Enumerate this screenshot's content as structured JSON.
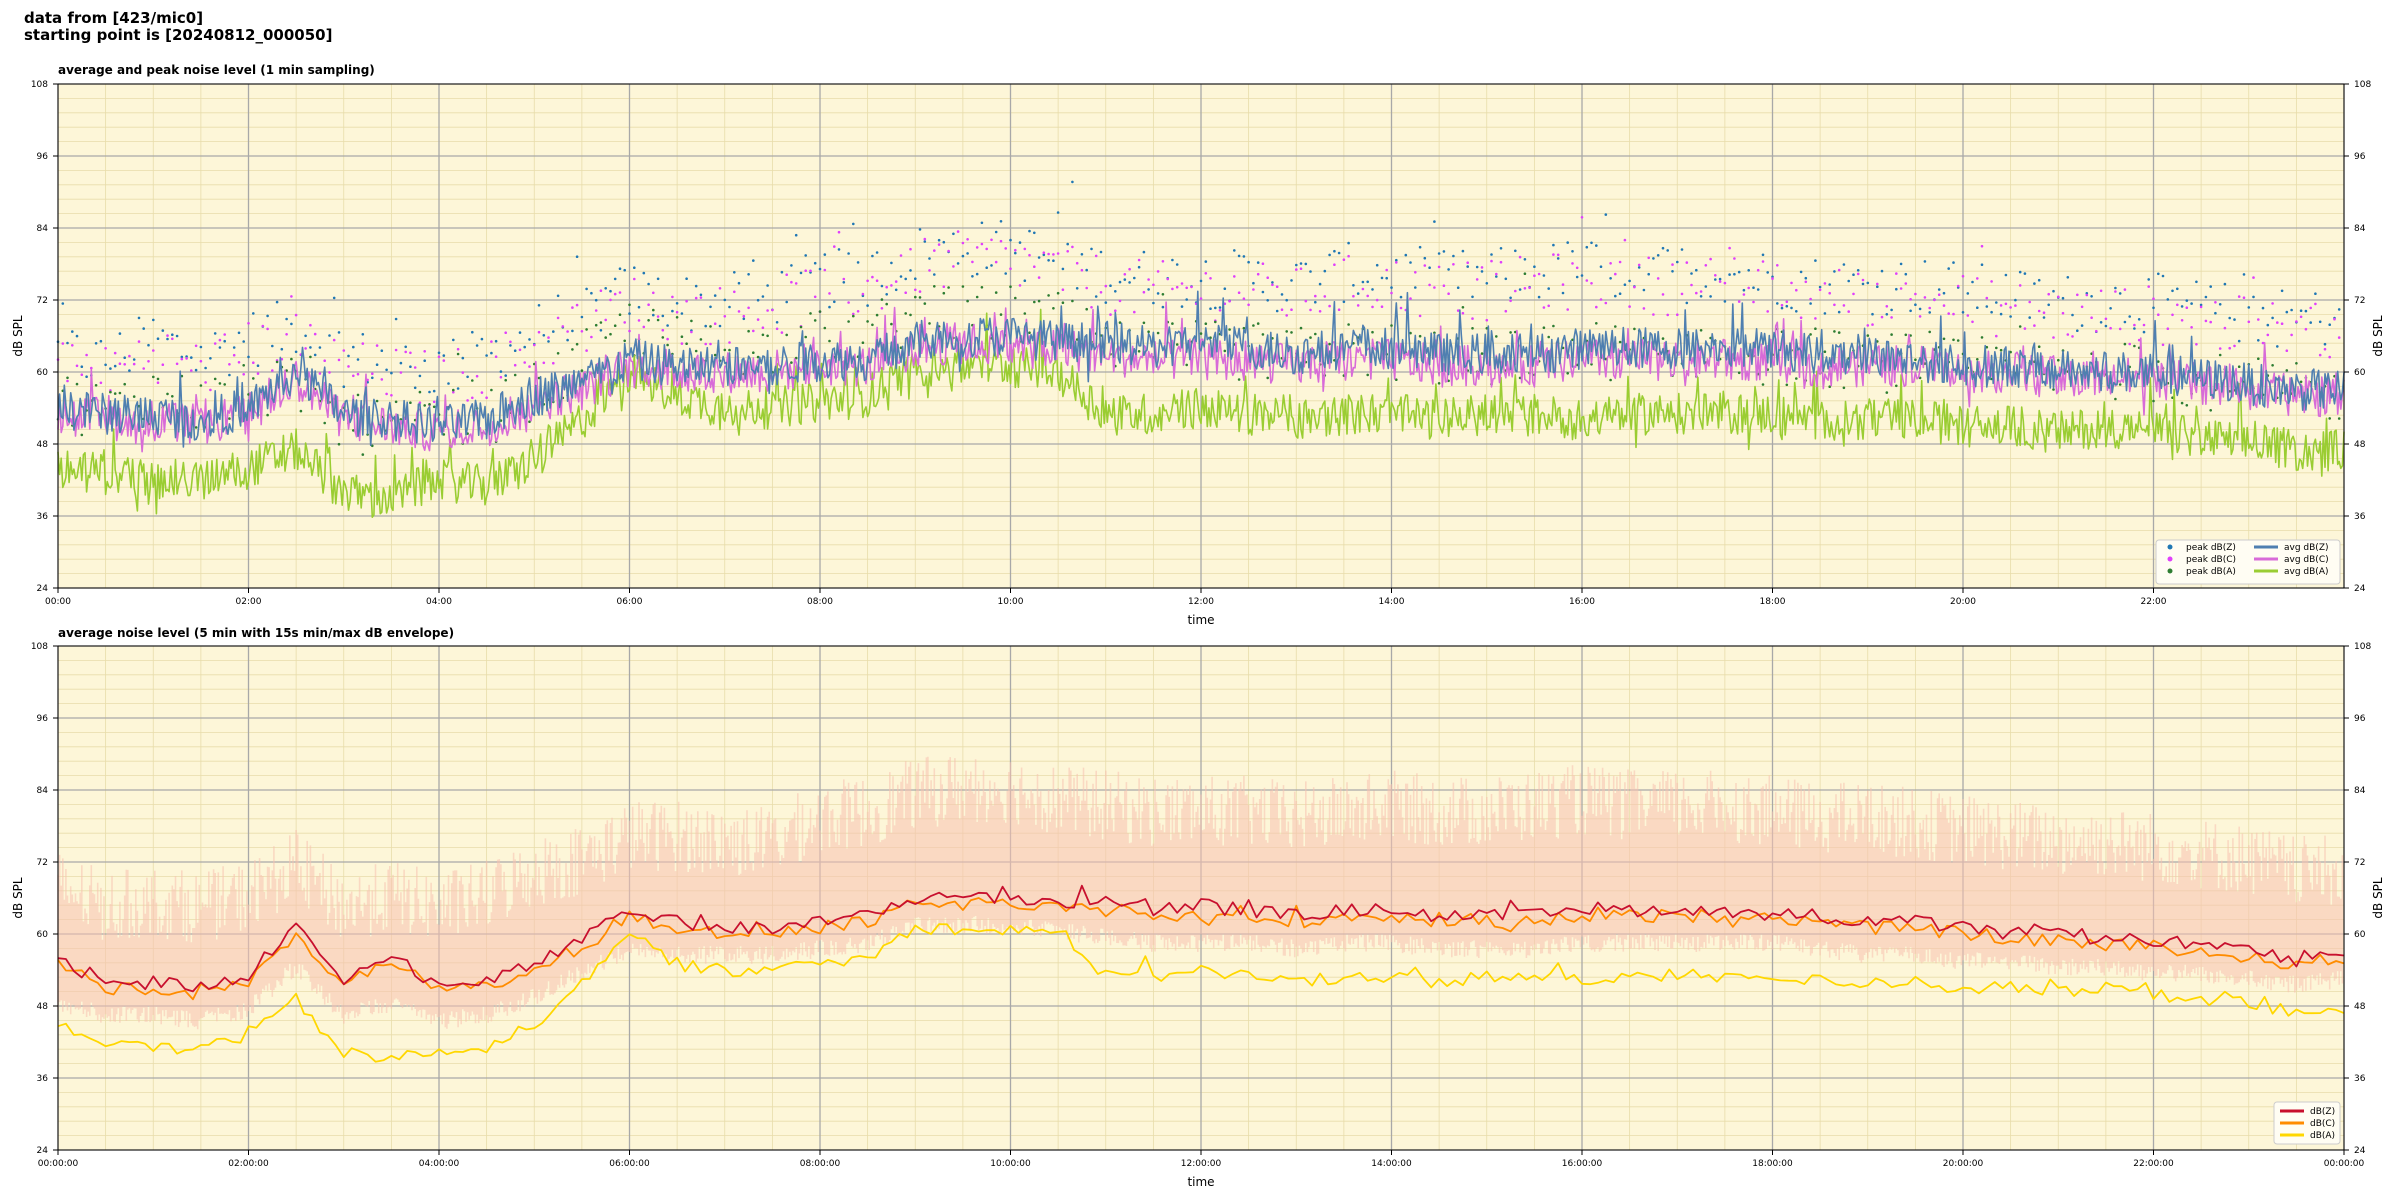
{
  "header": {
    "line1": "data from [423/mic0]",
    "line2": "starting point is [20240812_000050]"
  },
  "colors": {
    "background": "#fdf6d8",
    "peak_z": "#1f77b4",
    "peak_c": "#e040fb",
    "peak_a": "#2e7d32",
    "avg_z": "#4f7fb0",
    "avg_c": "#d86bd8",
    "avg_a": "#9acd32",
    "db_z": "#c8102e",
    "db_c": "#ff8c00",
    "db_a": "#ffd700",
    "envelope": "#f7c1b0"
  },
  "chart_data": [
    {
      "type": "line",
      "title": "average and peak noise level (1 min sampling)",
      "xlabel": "time",
      "ylabel": "dB SPL",
      "ylim": [
        24,
        108
      ],
      "xlim_hours": [
        0,
        24
      ],
      "yticks": [
        24,
        36,
        48,
        60,
        72,
        84,
        96,
        108
      ],
      "xtick_labels": [
        "00:00",
        "02:00",
        "04:00",
        "06:00",
        "08:00",
        "10:00",
        "12:00",
        "14:00",
        "16:00",
        "18:00",
        "20:00",
        "22:00"
      ],
      "grid": true,
      "legend_position": "bottom-right",
      "hours": [
        0,
        0.5,
        1,
        1.5,
        2,
        2.5,
        3,
        3.5,
        4,
        4.5,
        5,
        5.5,
        6,
        6.5,
        7,
        7.5,
        8,
        8.5,
        9,
        9.5,
        10,
        10.5,
        11,
        11.5,
        12,
        12.5,
        13,
        13.5,
        14,
        14.5,
        15,
        15.5,
        16,
        16.5,
        17,
        17.5,
        18,
        18.5,
        19,
        19.5,
        20,
        20.5,
        21,
        21.5,
        22,
        22.5,
        23,
        23.5,
        24
      ],
      "series": [
        {
          "name": "avg dB(Z)",
          "kind": "line",
          "color_key": "avg_z",
          "values": [
            54,
            53,
            53,
            52,
            54,
            60,
            53,
            52,
            51,
            52,
            56,
            58,
            62,
            61,
            61,
            61,
            62,
            62,
            65,
            66,
            66,
            65,
            65,
            64,
            65,
            64,
            63,
            64,
            64,
            63,
            63,
            63,
            64,
            64,
            64,
            64,
            64,
            63,
            63,
            62,
            61,
            61,
            60,
            60,
            60,
            59,
            58,
            57,
            57
          ]
        },
        {
          "name": "avg dB(C)",
          "kind": "line",
          "color_key": "avg_c",
          "values": [
            53,
            52,
            52,
            51,
            53,
            59,
            52,
            51,
            50,
            51,
            55,
            57,
            61,
            60,
            60,
            60,
            61,
            61,
            64,
            65,
            64,
            64,
            63,
            62,
            62,
            62,
            61,
            62,
            62,
            61,
            61,
            61,
            62,
            62,
            62,
            62,
            62,
            61,
            61,
            61,
            60,
            60,
            59,
            59,
            59,
            58,
            57,
            56,
            56
          ]
        },
        {
          "name": "avg dB(A)",
          "kind": "line",
          "color_key": "avg_a",
          "values": [
            44,
            43,
            42,
            42,
            44,
            47,
            40,
            39,
            42,
            41,
            45,
            52,
            60,
            56,
            54,
            54,
            55,
            56,
            61,
            61,
            61,
            60,
            53,
            53,
            54,
            53,
            52,
            53,
            53,
            52,
            53,
            53,
            52,
            53,
            53,
            53,
            53,
            52,
            52,
            52,
            51,
            51,
            50,
            51,
            50,
            49,
            48,
            47,
            47
          ]
        },
        {
          "name": "peak dB(Z)",
          "kind": "scatter",
          "color_key": "peak_z",
          "values": [
            64,
            62,
            66,
            63,
            66,
            68,
            63,
            62,
            61,
            63,
            67,
            70,
            74,
            72,
            72,
            73,
            76,
            76,
            80,
            81,
            81,
            79,
            77,
            76,
            76,
            76,
            75,
            77,
            77,
            76,
            76,
            77,
            78,
            77,
            77,
            77,
            76,
            75,
            75,
            75,
            74,
            73,
            72,
            72,
            72,
            71,
            70,
            69,
            70
          ]
        },
        {
          "name": "peak dB(C)",
          "kind": "scatter",
          "color_key": "peak_c",
          "values": [
            62,
            60,
            64,
            61,
            64,
            66,
            61,
            60,
            59,
            61,
            65,
            68,
            72,
            70,
            70,
            71,
            74,
            74,
            78,
            79,
            79,
            77,
            75,
            74,
            74,
            74,
            73,
            75,
            75,
            74,
            74,
            75,
            76,
            75,
            75,
            75,
            74,
            73,
            73,
            73,
            72,
            71,
            70,
            70,
            70,
            69,
            68,
            67,
            68
          ]
        },
        {
          "name": "peak dB(A)",
          "kind": "scatter",
          "color_key": "peak_a",
          "values": [
            56,
            54,
            57,
            55,
            57,
            58,
            52,
            51,
            53,
            53,
            57,
            62,
            68,
            65,
            64,
            64,
            66,
            67,
            70,
            70,
            70,
            69,
            64,
            64,
            64,
            64,
            63,
            64,
            64,
            63,
            63,
            64,
            64,
            64,
            64,
            64,
            63,
            63,
            62,
            62,
            61,
            61,
            60,
            61,
            60,
            59,
            58,
            57,
            57
          ]
        }
      ]
    },
    {
      "type": "line",
      "title": "average noise level (5 min with 15s min/max dB envelope)",
      "xlabel": "time",
      "ylabel": "dB SPL",
      "ylim": [
        24,
        108
      ],
      "xlim_hours": [
        0,
        24
      ],
      "yticks": [
        24,
        36,
        48,
        60,
        72,
        84,
        96,
        108
      ],
      "xtick_labels": [
        "00:00:00",
        "02:00:00",
        "04:00:00",
        "06:00:00",
        "08:00:00",
        "10:00:00",
        "12:00:00",
        "14:00:00",
        "16:00:00",
        "18:00:00",
        "20:00:00",
        "22:00:00",
        "00:00:00"
      ],
      "grid": true,
      "legend_position": "bottom-right",
      "hours": [
        0,
        0.5,
        1,
        1.5,
        2,
        2.5,
        3,
        3.5,
        4,
        4.5,
        5,
        5.5,
        6,
        6.5,
        7,
        7.5,
        8,
        8.5,
        9,
        9.5,
        10,
        10.5,
        11,
        11.5,
        12,
        12.5,
        13,
        13.5,
        14,
        14.5,
        15,
        15.5,
        16,
        16.5,
        17,
        17.5,
        18,
        18.5,
        19,
        19.5,
        20,
        20.5,
        21,
        21.5,
        22,
        22.5,
        23,
        23.5,
        24
      ],
      "series": [
        {
          "name": "dB(Z)",
          "kind": "line",
          "color_key": "db_z",
          "values": [
            56,
            52,
            52,
            51,
            53,
            61,
            52,
            57,
            51,
            52,
            55,
            59,
            64,
            62,
            61,
            61,
            62,
            63,
            66,
            66,
            66,
            65,
            66,
            64,
            65,
            64,
            63,
            64,
            64,
            63,
            63,
            63,
            64,
            64,
            64,
            64,
            64,
            63,
            62,
            62,
            61,
            60,
            60,
            59,
            59,
            58,
            57,
            56,
            57
          ]
        },
        {
          "name": "dB(C)",
          "kind": "line",
          "color_key": "db_c",
          "values": [
            55,
            51,
            51,
            50,
            52,
            60,
            51,
            56,
            50,
            51,
            54,
            58,
            63,
            61,
            60,
            60,
            61,
            62,
            65,
            65,
            65,
            64,
            64,
            63,
            63,
            63,
            62,
            63,
            63,
            62,
            62,
            62,
            63,
            63,
            63,
            63,
            63,
            62,
            61,
            61,
            60,
            59,
            59,
            58,
            58,
            57,
            56,
            55,
            56
          ]
        },
        {
          "name": "dB(A)",
          "kind": "line",
          "color_key": "db_a",
          "values": [
            45,
            42,
            41,
            41,
            43,
            49,
            40,
            39,
            41,
            41,
            45,
            52,
            60,
            55,
            54,
            54,
            55,
            56,
            61,
            61,
            61,
            60,
            53,
            53,
            54,
            53,
            52,
            53,
            53,
            52,
            53,
            53,
            52,
            53,
            53,
            53,
            53,
            52,
            52,
            52,
            51,
            51,
            50,
            51,
            50,
            49,
            48,
            47,
            47
          ]
        },
        {
          "name": "",
          "kind": "envelope_max",
          "color_key": "envelope",
          "values": [
            66,
            62,
            63,
            62,
            64,
            69,
            62,
            64,
            62,
            64,
            68,
            70,
            74,
            74,
            73,
            73,
            77,
            78,
            81,
            82,
            82,
            80,
            79,
            78,
            78,
            78,
            77,
            78,
            79,
            78,
            78,
            79,
            80,
            79,
            79,
            79,
            78,
            77,
            77,
            76,
            75,
            74,
            73,
            73,
            72,
            71,
            70,
            68,
            68
          ]
        },
        {
          "name": "",
          "kind": "envelope_min",
          "color_key": "envelope",
          "values": [
            50,
            48,
            48,
            47,
            49,
            56,
            48,
            50,
            47,
            48,
            51,
            55,
            59,
            58,
            58,
            58,
            59,
            60,
            63,
            63,
            63,
            62,
            61,
            60,
            60,
            60,
            59,
            60,
            60,
            59,
            59,
            59,
            60,
            60,
            60,
            60,
            60,
            59,
            58,
            58,
            57,
            57,
            56,
            56,
            55,
            55,
            54,
            53,
            54
          ]
        }
      ]
    }
  ]
}
